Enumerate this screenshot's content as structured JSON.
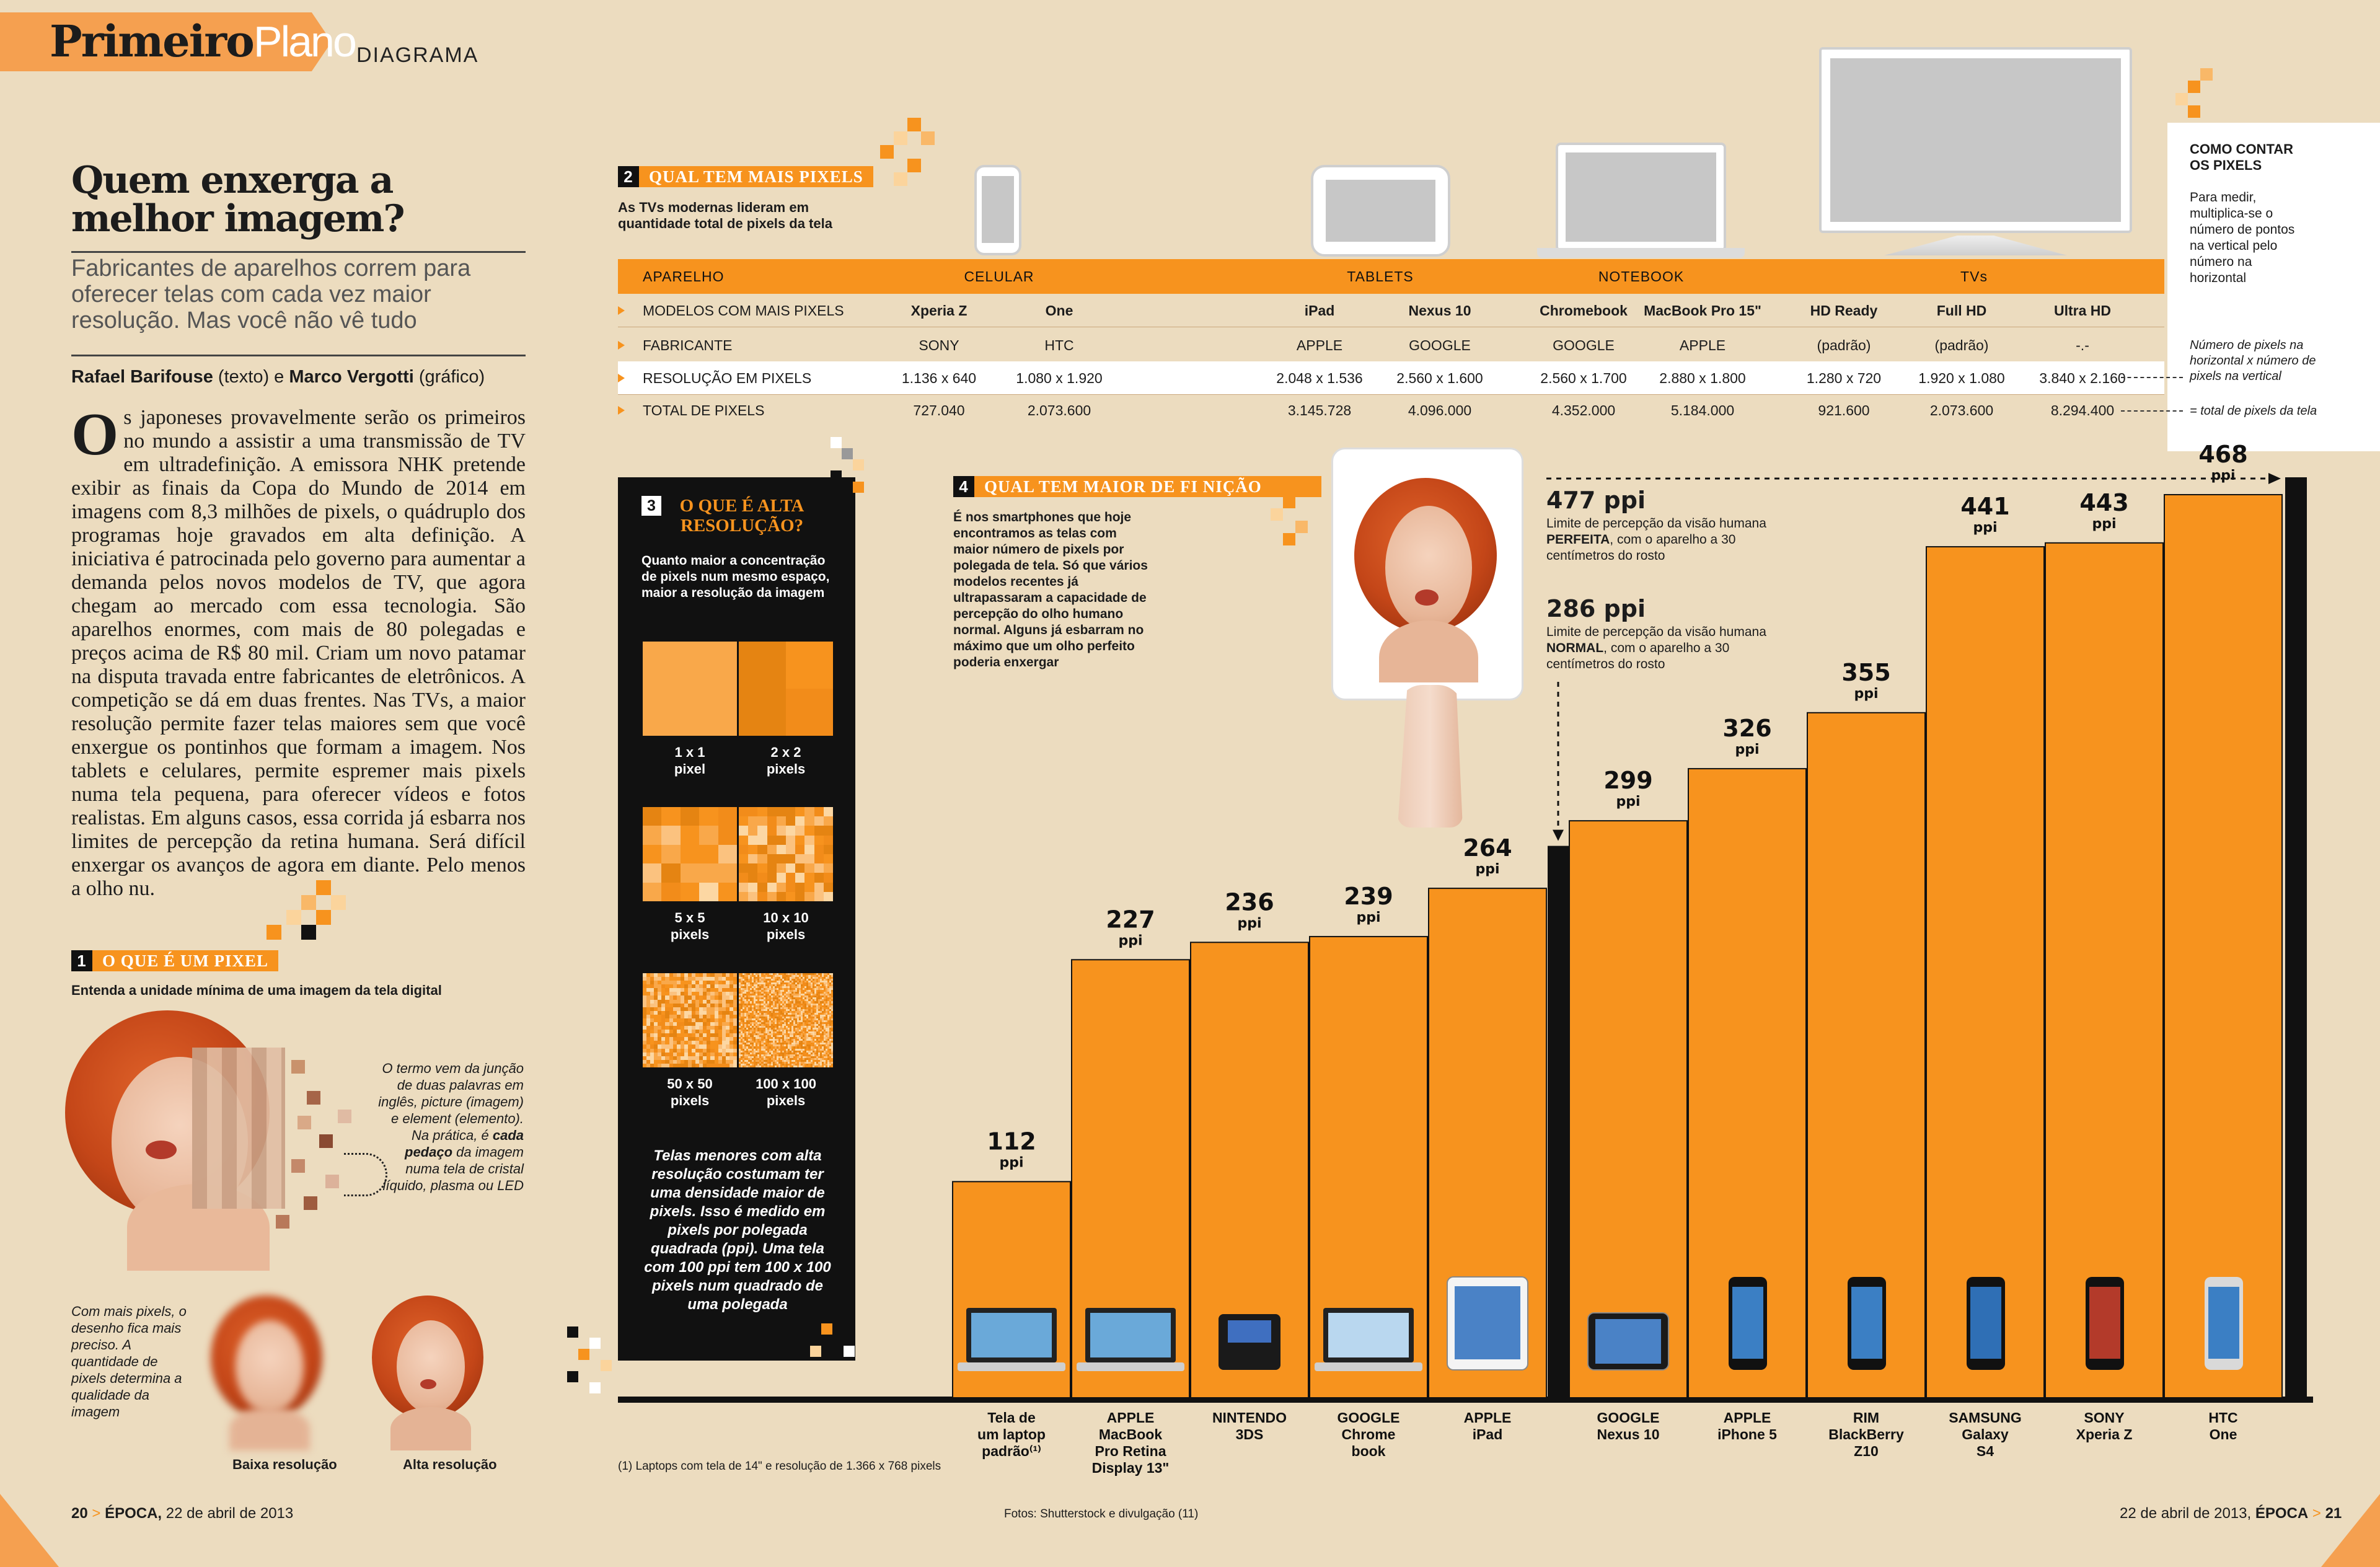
{
  "header": {
    "logo_bold": "Primeiro",
    "logo_light": "Plano",
    "section": "DIAGRAMA"
  },
  "article": {
    "headline": "Quem enxerga a melhor imagem?",
    "standfirst": "Fabricantes de aparelhos correm para oferecer telas com cada vez maior resolução. Mas você não vê tudo",
    "byline_author1": "Rafael Barifouse",
    "byline_role1": "(texto) e",
    "byline_author2": "Marco Vergotti",
    "byline_role2": "(gráfico)",
    "dropcap": "O",
    "body": "s japoneses provavelmente serão os primeiros no mundo a assistir a uma transmissão de TV em ultradefinição. A emissora NHK pretende exibir as finais da Copa do Mundo de 2014 em imagens com 8,3 milhões de pixels, o quádruplo dos programas hoje gravados em alta definição. A iniciativa é patrocinada pelo governo para aumentar a demanda pelos novos modelos de TV, que agora chegam ao mercado com essa tecnologia. São aparelhos enormes, com mais de 80 polegadas e preços acima de R$ 80 mil. Criam um novo patamar na disputa travada entre fabricantes de eletrônicos. A competição se dá em duas frentes. Nas TVs, a maior resolução permite fazer telas maiores sem que você enxergue os pontinhos que formam a imagem. Nos tablets e celulares, permite espremer mais pixels numa tela pequena, para oferecer vídeos e fotos realistas. Em alguns casos, essa corrida já esbarra nos limites de percepção da retina humana. Será difícil enxergar os avanços de agora em diante. Pelo menos a olho nu."
  },
  "section1": {
    "num": "1",
    "title": "O QUE É UM PIXEL",
    "subtitle": "Entenda a unidade mínima de uma imagem da tela digital",
    "caption_pre": "O termo vem da junção de duas palavras em inglês, picture (imagem) e element (elemento). Na prática, é",
    "caption_bold": "cada pedaço",
    "caption_post": "da imagem numa tela de cristal líquido, plasma ou LED",
    "side_caption": "Com mais pixels, o desenho fica mais preciso. A quantidade de pixels determina a qualidade da imagem",
    "low_res": "Baixa resolução",
    "high_res": "Alta resolução"
  },
  "section2": {
    "num": "2",
    "title": "QUAL TEM MAIS PIXELS",
    "subtitle": "As TVs modernas lideram em quantidade total de pixels da tela",
    "header": {
      "aparelho": "APARELHO",
      "celular": "CELULAR",
      "tablets": "TABLETS",
      "notebook": "NOTEBOOK",
      "tvs": "TVs"
    },
    "rows": [
      {
        "label": "MODELOS COM MAIS PIXELS",
        "values": [
          "Xperia Z",
          "One",
          "iPad",
          "Nexus 10",
          "Chromebook",
          "MacBook Pro 15\"",
          "HD Ready",
          "Full HD",
          "Ultra HD"
        ]
      },
      {
        "label": "FABRICANTE",
        "values": [
          "SONY",
          "HTC",
          "APPLE",
          "GOOGLE",
          "GOOGLE",
          "APPLE",
          "(padrão)",
          "(padrão)",
          "-.-"
        ]
      },
      {
        "label": "RESOLUÇÃO EM PIXELS",
        "values": [
          "1.136 x 640",
          "1.080 x 1.920",
          "2.048 x 1.536",
          "2.560 x 1.600",
          "2.560 x 1.700",
          "2.880 x 1.800",
          "1.280 x 720",
          "1.920 x 1.080",
          "3.840 x 2.160"
        ]
      },
      {
        "label": "TOTAL DE PIXELS",
        "values": [
          "727.040",
          "2.073.600",
          "3.145.728",
          "4.096.000",
          "4.352.000",
          "5.184.000",
          "921.600",
          "2.073.600",
          "8.294.400"
        ]
      }
    ]
  },
  "count_box": {
    "title": "COMO CONTAR OS PIXELS",
    "text": "Para medir, multiplica-se o número de pontos na vertical pelo número na horizontal",
    "note1": "Número de pixels na horizontal x número de pixels na vertical",
    "note2": "= total de pixels da tela"
  },
  "section3": {
    "num": "3",
    "title": "O QUE É ALTA RESOLUÇÃO?",
    "intro": "Quanto maior a concentração de pixels num mesmo espaço, maior a resolução da imagem",
    "grids": [
      {
        "a": "1 x 1",
        "b": "2 x 2"
      },
      {
        "a": "5 x 5",
        "b": "10 x 10"
      },
      {
        "a": "50 x 50",
        "b": "100 x 100"
      }
    ],
    "pixels_word": "pixel",
    "pixels_word_pl": "pixels",
    "outro": "Telas menores com alta resolução costumam ter uma densidade maior de pixels. Isso é medido em pixels por polegada quadrada (ppi). Uma tela com 100 ppi tem 100 x 100 pixels num quadrado de uma polegada"
  },
  "section4": {
    "num": "4",
    "title": "QUAL TEM MAIOR DE FI NIÇÃO",
    "intro": "É nos smartphones que hoje encontramos as telas com maior número de pixels por polegada de tela. Só que vários modelos recentes já ultrapassaram a capacidade de percepção do olho humano normal. Alguns já esbarram no máximo que um olho perfeito poderia enxergar",
    "limit_high_value": "477 ppi",
    "limit_high_pre": "Limite de percepção da visão humana",
    "limit_high_bold": "PERFEITA",
    "limit_high_post": ", com o aparelho a 30 centímetros do rosto",
    "limit_low_value": "286 ppi",
    "limit_low_pre": "Limite de percepção da visão humana",
    "limit_low_bold": "NORMAL",
    "limit_low_post": ", com o aparelho a 30 centímetros do rosto"
  },
  "chart_data": {
    "type": "bar",
    "unit": "ppi",
    "categories": [
      "Tela de um laptop padrão⁽¹⁾",
      "APPLE MacBook Pro Retina Display 13\"",
      "NINTENDO 3DS",
      "GOOGLE Chrome book",
      "APPLE iPad",
      "GOOGLE Nexus 10",
      "APPLE iPhone 5",
      "RIM BlackBerry Z10",
      "SAMSUNG Galaxy S4",
      "SONY Xperia Z",
      "HTC One"
    ],
    "label_lines": [
      [
        "Tela de",
        "um laptop",
        "padrão⁽¹⁾"
      ],
      [
        "APPLE",
        "MacBook",
        "Pro Retina",
        "Display 13\""
      ],
      [
        "NINTENDO",
        "3DS"
      ],
      [
        "GOOGLE",
        "Chrome",
        "book"
      ],
      [
        "APPLE",
        "iPad"
      ],
      [
        "GOOGLE",
        "Nexus 10"
      ],
      [
        "APPLE",
        "iPhone 5"
      ],
      [
        "RIM",
        "BlackBerry",
        "Z10"
      ],
      [
        "SAMSUNG",
        "Galaxy",
        "S4"
      ],
      [
        "SONY",
        "Xperia Z"
      ],
      [
        "HTC",
        "One"
      ]
    ],
    "values": [
      112,
      227,
      236,
      239,
      264,
      299,
      326,
      355,
      441,
      443,
      468
    ],
    "reference_lines": [
      286,
      477
    ],
    "ylim": [
      0,
      477
    ],
    "colors": {
      "bar": "#f7931e",
      "limit": "#111111"
    }
  },
  "footer": {
    "left_page": "20",
    "left_pub": "ÉPOCA,",
    "left_date": "22 de abril de 2013",
    "footnote": "(1) Laptops com tela de 14\" e resolução de 1.366 x 768 pixels",
    "credit": "Fotos: Shutterstock e divulgação (11)",
    "right_date": "22 de abril de 2013,",
    "right_pub": "ÉPOCA",
    "right_page": "21"
  }
}
